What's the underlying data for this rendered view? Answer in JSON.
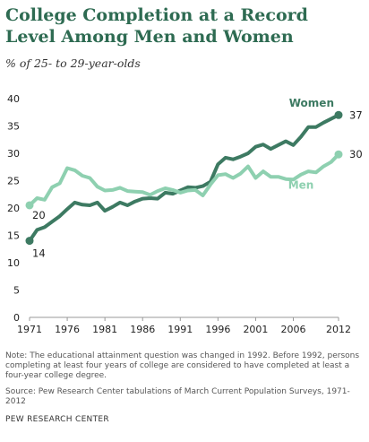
{
  "title": "College Completion at a Record Level Among Men and Women",
  "subtitle": "% of 25- to 29-year-olds",
  "note": "Note: The educational attainment question was changed in 1992. Before 1992, persons completing at least four years of college are considered to have completed at least a four-year college degree.",
  "source": "Source: Pew Research Center tabulations of March Current Population Surveys, 1971-2012",
  "credit": "PEW RESEARCH CENTER",
  "colors": {
    "women": "#3d7a62",
    "men": "#8ed0b0",
    "axis": "#999999",
    "title": "#2e6b52"
  },
  "chart_data": {
    "type": "line",
    "title": "College Completion at a Record Level Among Men and Women",
    "subtitle": "% of 25- to 29-year-olds",
    "ylim": [
      0,
      40
    ],
    "yticks": [
      0,
      5,
      10,
      15,
      20,
      25,
      30,
      35,
      40
    ],
    "xlim": [
      1971,
      2012
    ],
    "xticks": [
      1971,
      1976,
      1981,
      1986,
      1991,
      1996,
      2001,
      2006,
      2012
    ],
    "grid": false,
    "x": [
      1971,
      1972,
      1973,
      1974,
      1975,
      1976,
      1977,
      1978,
      1979,
      1980,
      1981,
      1982,
      1983,
      1984,
      1985,
      1986,
      1987,
      1988,
      1989,
      1990,
      1991,
      1992,
      1993,
      1994,
      1995,
      1996,
      1997,
      1998,
      1999,
      2000,
      2001,
      2002,
      2003,
      2004,
      2005,
      2006,
      2007,
      2008,
      2009,
      2010,
      2011,
      2012
    ],
    "series": [
      {
        "name": "Women",
        "color": "#3d7a62",
        "start_label": "14",
        "end_label": "37",
        "values": [
          14,
          16,
          16.5,
          17.5,
          18.5,
          19.8,
          21,
          20.6,
          20.5,
          21,
          19.5,
          20.2,
          21,
          20.5,
          21.2,
          21.7,
          21.8,
          21.7,
          22.8,
          22.6,
          23.2,
          23.8,
          23.7,
          24,
          24.8,
          28,
          29.2,
          28.9,
          29.4,
          30,
          31.2,
          31.6,
          30.8,
          31.5,
          32.2,
          31.5,
          33,
          34.8,
          34.8,
          35.6,
          36.3,
          37
        ]
      },
      {
        "name": "Men",
        "color": "#8ed0b0",
        "start_label": "20",
        "end_label": "30",
        "values": [
          20.5,
          21.8,
          21.5,
          23.8,
          24.5,
          27.3,
          26.9,
          25.9,
          25.5,
          23.9,
          23.2,
          23.3,
          23.7,
          23.1,
          23,
          22.9,
          22.4,
          23.1,
          23.6,
          23.3,
          22.8,
          23.2,
          23.3,
          22.3,
          24.3,
          26,
          26.2,
          25.5,
          26.3,
          27.6,
          25.5,
          26.7,
          25.7,
          25.7,
          25.3,
          25.2,
          26.1,
          26.7,
          26.5,
          27.6,
          28.4,
          29.8
        ]
      }
    ]
  }
}
